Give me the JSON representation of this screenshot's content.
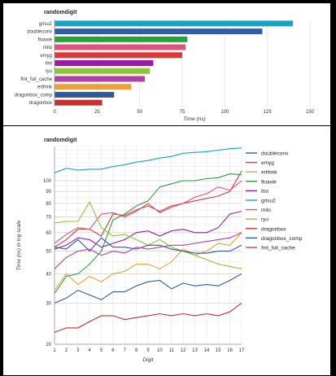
{
  "chart_data": [
    {
      "type": "bar",
      "orientation": "horizontal",
      "title": "randomdigit",
      "xlabel": "Time (ns)",
      "ylabel": "",
      "xlim": [
        0,
        150
      ],
      "xticks": [
        0,
        25,
        50,
        75,
        100,
        125,
        150
      ],
      "grid": true,
      "categories": [
        "grisu2",
        "doubleconv",
        "floaxie",
        "milo",
        "emyg",
        "fmt",
        "ryu",
        "fmt_full_cache",
        "erthink",
        "dragonbox_comp",
        "dragonbox"
      ],
      "values": [
        140,
        122,
        78,
        77,
        75,
        58,
        56,
        53,
        45,
        35,
        28
      ],
      "colors": [
        "#17a2c8",
        "#2f5dab",
        "#26a23a",
        "#e0527a",
        "#d93b3b",
        "#9c1aa0",
        "#8dc43a",
        "#b040a8",
        "#f0a030",
        "#2c5a9a",
        "#c83030"
      ]
    },
    {
      "type": "line",
      "title": "randomdigit",
      "xlabel": "Digit",
      "ylabel": "Time (ns) in log scale",
      "yscale": "log",
      "ylim": [
        20,
        140
      ],
      "xlim": [
        1,
        17
      ],
      "yticks": [
        20,
        30,
        40,
        50,
        60,
        70,
        80,
        90,
        100
      ],
      "grid": true,
      "legend_position": "right",
      "x": [
        1,
        2,
        3,
        4,
        5,
        6,
        7,
        8,
        9,
        10,
        11,
        12,
        13,
        14,
        15,
        16,
        17
      ],
      "series": [
        {
          "name": "doubleconv",
          "color": "#2f5dab",
          "values": [
            30,
            31.5,
            34,
            32.5,
            31,
            33.5,
            33.5,
            35.5,
            37,
            37.5,
            34.5,
            36.5,
            35.5,
            36,
            35.5,
            37.5,
            40
          ]
        },
        {
          "name": "emyg",
          "color": "#d93b3b",
          "values": [
            52,
            56,
            62,
            62,
            58,
            72,
            71,
            75,
            78,
            74,
            78,
            80,
            82,
            84,
            86,
            90,
            110
          ]
        },
        {
          "name": "erthink",
          "color": "#f0a030",
          "values": [
            34,
            40,
            36,
            39,
            37,
            40,
            41,
            44,
            44,
            42,
            45,
            51,
            48,
            50,
            54,
            53,
            60
          ]
        },
        {
          "name": "floaxie",
          "color": "#26a23a",
          "values": [
            33,
            39,
            40,
            44,
            50,
            68,
            72,
            78,
            82,
            94,
            97,
            100,
            100,
            102,
            103,
            107,
            106
          ]
        },
        {
          "name": "fmt",
          "color": "#9c1aa0",
          "values": [
            51,
            53,
            57,
            56,
            52,
            54,
            56,
            60,
            61,
            58,
            61,
            62,
            60,
            60,
            63,
            72,
            74
          ]
        },
        {
          "name": "grisu2",
          "color": "#17a2c8",
          "values": [
            108,
            113,
            111,
            112,
            112,
            115,
            117,
            120,
            122,
            125,
            127,
            131,
            132,
            133,
            135,
            137,
            138
          ]
        },
        {
          "name": "milo",
          "color": "#e0527a",
          "values": [
            54,
            59,
            63,
            62,
            72,
            73,
            70,
            74,
            80,
            73,
            77,
            80,
            85,
            88,
            94,
            91,
            100
          ]
        },
        {
          "name": "ryu",
          "color": "#8dc43a",
          "values": [
            66,
            67,
            67,
            81,
            63,
            58,
            59,
            56,
            53,
            56,
            52,
            50,
            48,
            46,
            44,
            43,
            42
          ]
        },
        {
          "name": "dragonbox",
          "color": "#c83030",
          "values": [
            22.5,
            23.5,
            23.5,
            25,
            26.5,
            26.5,
            25.5,
            26,
            26.5,
            27,
            26.5,
            27,
            26.5,
            27,
            26.5,
            27.5,
            30
          ]
        },
        {
          "name": "dragonbox_comp",
          "color": "#2c5a9a",
          "values": [
            52,
            51,
            56,
            50,
            57,
            52,
            52,
            51,
            53,
            53,
            51,
            50,
            49,
            49,
            50,
            50,
            53
          ]
        },
        {
          "name": "fmt_full_cache",
          "color": "#b040a8",
          "values": [
            42,
            47,
            50,
            51,
            48,
            50,
            49,
            52,
            51,
            52,
            53,
            53,
            54,
            55,
            56,
            57,
            60
          ]
        }
      ]
    }
  ]
}
